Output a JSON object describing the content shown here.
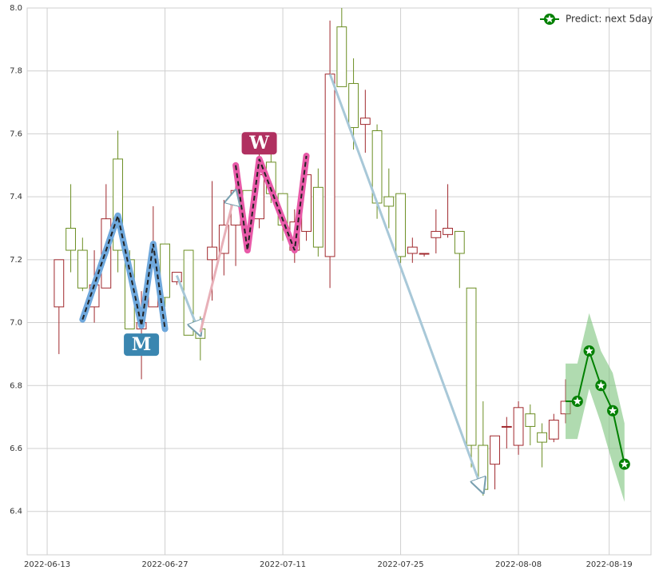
{
  "chart_data": {
    "type": "candlestick",
    "xlim": [
      -1.7,
      51.25
    ],
    "ylim": [
      6.262,
      8.0
    ],
    "xticks": [
      {
        "value": 0,
        "label": "2022-06-13"
      },
      {
        "value": 10,
        "label": "2022-06-27"
      },
      {
        "value": 20,
        "label": "2022-07-11"
      },
      {
        "value": 30,
        "label": "2022-07-25"
      },
      {
        "value": 40,
        "label": "2022-08-08"
      },
      {
        "value": 47.7,
        "label": "2022-08-19"
      }
    ],
    "yticks": [
      {
        "value": 6.4,
        "label": "6.4"
      },
      {
        "value": 6.6,
        "label": "6.6"
      },
      {
        "value": 6.8,
        "label": "6.8"
      },
      {
        "value": 7.0,
        "label": "7.0"
      },
      {
        "value": 7.2,
        "label": "7.2"
      },
      {
        "value": 7.4,
        "label": "7.4"
      },
      {
        "value": 7.6,
        "label": "7.6"
      },
      {
        "value": 7.8,
        "label": "7.8"
      },
      {
        "value": 8.0,
        "label": "8.0"
      }
    ],
    "grid": true,
    "up_color": "#a0282d",
    "down_color": "#6b8e23",
    "candles": {
      "x": [
        1,
        2,
        3,
        4,
        5,
        6,
        7,
        8,
        9,
        10,
        11,
        12,
        13,
        14,
        15,
        16,
        17,
        18,
        19,
        20,
        21,
        22,
        23,
        24,
        25,
        26,
        27,
        28,
        29,
        30,
        31,
        32,
        33,
        34,
        35,
        36,
        37,
        38,
        39,
        40,
        41,
        42,
        43,
        44
      ],
      "open": [
        7.05,
        7.3,
        7.23,
        7.05,
        7.11,
        7.52,
        7.2,
        6.98,
        7.05,
        7.25,
        7.13,
        7.23,
        6.98,
        7.2,
        7.22,
        7.31,
        7.42,
        7.33,
        7.51,
        7.41,
        7.23,
        7.29,
        7.43,
        7.21,
        7.94,
        7.76,
        7.63,
        7.61,
        7.4,
        7.41,
        7.22,
        7.22,
        7.27,
        7.28,
        7.29,
        7.11,
        6.61,
        6.55,
        6.67,
        6.61,
        6.71,
        6.65,
        6.63,
        6.71
      ],
      "high": [
        7.2,
        7.44,
        7.27,
        7.23,
        7.44,
        7.61,
        7.23,
        7.1,
        7.37,
        7.25,
        7.16,
        7.23,
        7.02,
        7.45,
        7.39,
        7.49,
        7.42,
        7.58,
        7.54,
        7.41,
        7.36,
        7.54,
        7.49,
        7.96,
        8.0,
        7.84,
        7.74,
        7.63,
        7.49,
        7.41,
        7.27,
        7.22,
        7.36,
        7.44,
        7.29,
        7.11,
        6.75,
        6.64,
        6.7,
        6.75,
        6.74,
        6.68,
        6.71,
        6.82
      ],
      "low": [
        6.9,
        7.16,
        7.1,
        7.0,
        7.11,
        7.16,
        6.98,
        6.82,
        7.05,
        7.05,
        7.12,
        6.96,
        6.88,
        7.07,
        7.15,
        7.18,
        7.23,
        7.3,
        7.38,
        7.26,
        7.19,
        7.26,
        7.21,
        7.11,
        7.75,
        7.55,
        7.54,
        7.33,
        7.3,
        7.19,
        7.19,
        7.21,
        7.22,
        7.27,
        7.11,
        6.54,
        6.45,
        6.47,
        6.6,
        6.58,
        6.61,
        6.54,
        6.62,
        6.68
      ],
      "close": [
        7.2,
        7.23,
        7.11,
        7.12,
        7.33,
        7.23,
        6.98,
        7.0,
        7.2,
        7.08,
        7.16,
        6.96,
        6.95,
        7.24,
        7.31,
        7.42,
        7.29,
        7.47,
        7.41,
        7.31,
        7.32,
        7.47,
        7.24,
        7.79,
        7.75,
        7.62,
        7.65,
        7.38,
        7.37,
        7.21,
        7.24,
        7.22,
        7.29,
        7.3,
        7.22,
        6.61,
        6.47,
        6.64,
        6.67,
        6.73,
        6.67,
        6.62,
        6.69,
        6.75
      ]
    },
    "prediction": {
      "name": "Predict: next 5day",
      "color": "#008000",
      "band_color": "#7cc37c",
      "x": [
        45,
        46,
        47,
        48,
        49
      ],
      "values": [
        6.75,
        6.91,
        6.8,
        6.72,
        6.55
      ],
      "band_x": [
        44,
        45,
        46,
        47,
        48,
        49
      ],
      "band_upper": [
        6.87,
        6.87,
        7.03,
        6.91,
        6.84,
        6.68
      ],
      "band_lower": [
        6.63,
        6.63,
        6.79,
        6.68,
        6.55,
        6.43
      ]
    },
    "legend": "upper right",
    "patterns": [
      {
        "label": "M",
        "color": "#6fa8dc",
        "label_color": "#3a86b0",
        "x": [
          3,
          6,
          8,
          9,
          10
        ],
        "y": [
          7.01,
          7.34,
          6.99,
          7.25,
          6.98
        ],
        "label_x": 8,
        "label_y": 6.93
      },
      {
        "label": "W",
        "color": "#e85aa8",
        "label_color": "#b03060",
        "x": [
          16,
          17,
          18,
          21,
          22
        ],
        "y": [
          7.5,
          7.23,
          7.52,
          7.23,
          7.53
        ],
        "label_x": 18,
        "label_y": 7.57
      }
    ],
    "arrows": [
      {
        "color": "#a8c8d8",
        "from": [
          11,
          7.15
        ],
        "to": [
          13,
          6.96
        ]
      },
      {
        "color": "#e8b0b8",
        "from": [
          13,
          6.97
        ],
        "to": [
          16,
          7.42
        ]
      },
      {
        "color": "#a8c8d8",
        "from": [
          24,
          7.79
        ],
        "to": [
          37,
          6.46
        ]
      }
    ]
  }
}
